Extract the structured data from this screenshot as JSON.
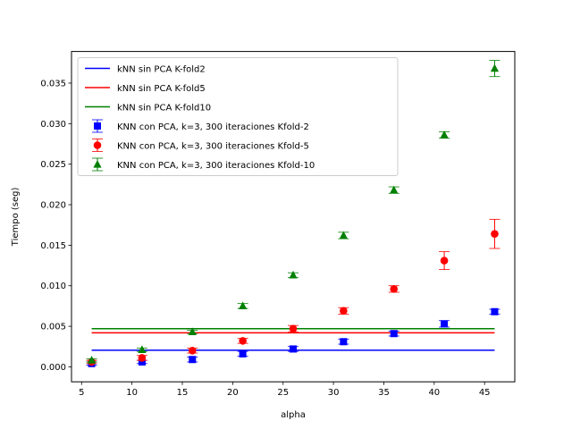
{
  "chart_data": {
    "type": "scatter",
    "xlabel": "alpha",
    "ylabel": "Tiempo (seg)",
    "xlim": [
      4.0,
      48.0
    ],
    "ylim": [
      -0.00185,
      0.0389
    ],
    "xticks": [
      5,
      10,
      15,
      20,
      25,
      30,
      35,
      40,
      45
    ],
    "yticks": [
      0.0,
      0.005,
      0.01,
      0.015,
      0.02,
      0.025,
      0.03,
      0.035
    ],
    "ytick_labels": [
      "0.000",
      "0.005",
      "0.010",
      "0.015",
      "0.020",
      "0.025",
      "0.030",
      "0.035"
    ],
    "legend_position": "upper-left",
    "lines": [
      {
        "name": "kNN sin PCA K-fold2",
        "color": "#0000ff",
        "x": [
          6,
          46
        ],
        "y": [
          0.00205,
          0.00205
        ]
      },
      {
        "name": "kNN sin PCA K-fold5",
        "color": "#ff0000",
        "x": [
          6,
          46
        ],
        "y": [
          0.0042,
          0.0042
        ]
      },
      {
        "name": "kNN sin PCA K-fold10",
        "color": "#008000",
        "x": [
          6,
          46
        ],
        "y": [
          0.0047,
          0.0047
        ]
      }
    ],
    "series": [
      {
        "name": "KNN con PCA, k=3, 300 iteraciones Kfold-2",
        "color": "#0000ff",
        "marker": "square",
        "x": [
          6,
          11,
          16,
          21,
          26,
          31,
          36,
          41,
          46
        ],
        "y": [
          0.0004,
          0.0006,
          0.0009,
          0.0016,
          0.0022,
          0.0031,
          0.0041,
          0.0053,
          0.0068
        ],
        "err": [
          0.0002,
          0.0002,
          0.0003,
          0.0003,
          0.0003,
          0.0003,
          0.0003,
          0.0004,
          0.0003
        ]
      },
      {
        "name": "KNN con PCA, k=3, 300 iteraciones Kfold-5",
        "color": "#ff0000",
        "marker": "circle",
        "x": [
          6,
          11,
          16,
          21,
          26,
          31,
          36,
          41,
          46
        ],
        "y": [
          0.0006,
          0.0011,
          0.002,
          0.0032,
          0.0047,
          0.0069,
          0.0096,
          0.0131,
          0.0164
        ],
        "err": [
          0.0002,
          0.0003,
          0.0003,
          0.0003,
          0.0004,
          0.0004,
          0.0004,
          0.0011,
          0.0018
        ]
      },
      {
        "name": "KNN con PCA, k=3, 300 iteraciones Kfold-10",
        "color": "#008000",
        "marker": "triangle",
        "x": [
          6,
          11,
          16,
          21,
          26,
          31,
          36,
          41,
          46
        ],
        "y": [
          0.0008,
          0.0021,
          0.0043,
          0.0075,
          0.0113,
          0.0162,
          0.0218,
          0.0286,
          0.0368
        ],
        "err": [
          0.0002,
          0.0002,
          0.0002,
          0.0003,
          0.0003,
          0.0004,
          0.0004,
          0.0004,
          0.001
        ]
      }
    ]
  }
}
